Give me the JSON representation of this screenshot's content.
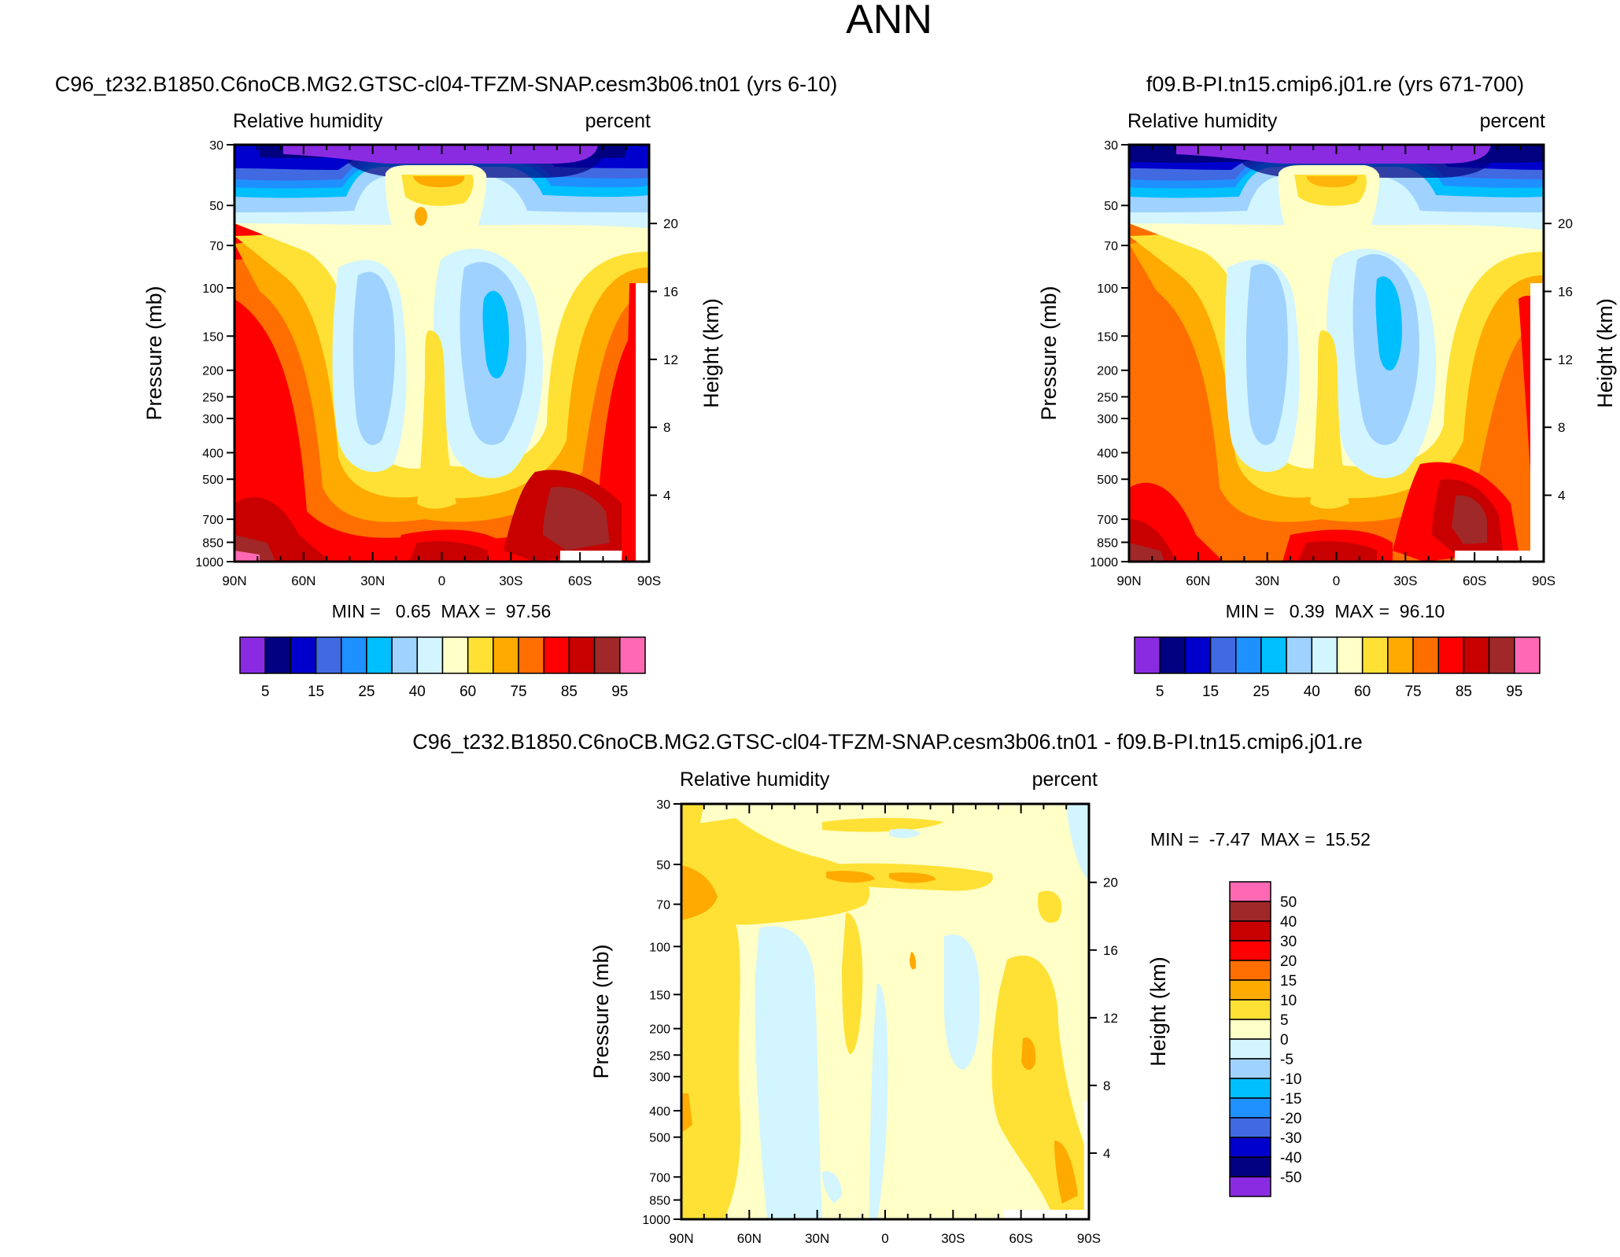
{
  "figure": {
    "title": "ANN"
  },
  "chart_data": [
    {
      "type": "contour",
      "id": "panel1",
      "title": "C96_t232.B1850.C6noCB.MG2.GTSC-cl04-TFZM-SNAP.cesm3b06.tn01 (yrs 6-10)",
      "variable": "Relative humidity",
      "units": "percent",
      "ylabel": "Pressure (mb)",
      "y2label": "Height (km)",
      "x_ticks": [
        "90N",
        "60N",
        "30N",
        "0",
        "30S",
        "60S",
        "90S"
      ],
      "x_values": [
        90,
        60,
        30,
        0,
        -30,
        -60,
        -90
      ],
      "p_ticks": [
        30,
        50,
        70,
        100,
        150,
        200,
        250,
        300,
        400,
        500,
        700,
        850,
        1000
      ],
      "height_ticks": [
        20,
        16,
        12,
        8,
        4
      ],
      "ylim": [
        1000,
        30
      ],
      "stats": "MIN =   0.65  MAX =  97.56",
      "min": 0.65,
      "max": 97.56,
      "colorbar": {
        "labels": [
          "5",
          "15",
          "25",
          "40",
          "60",
          "75",
          "85",
          "95"
        ],
        "levels": [
          5,
          10,
          15,
          20,
          25,
          30,
          40,
          50,
          60,
          70,
          75,
          80,
          85,
          90,
          95
        ],
        "colors": [
          "#8a2be2",
          "#000080",
          "#0000cd",
          "#4169e1",
          "#1e90ff",
          "#00bfff",
          "#a0d2ff",
          "#d2f5ff",
          "#ffffc8",
          "#ffe135",
          "#ffaa00",
          "#ff6e00",
          "#ff0000",
          "#c80000",
          "#a02828",
          "#ff69b4"
        ]
      }
    },
    {
      "type": "contour",
      "id": "panel2",
      "title": "f09.B-PI.tn15.cmip6.j01.re (yrs 671-700)",
      "variable": "Relative humidity",
      "units": "percent",
      "ylabel": "Pressure (mb)",
      "y2label": "Height (km)",
      "x_ticks": [
        "90N",
        "60N",
        "30N",
        "0",
        "30S",
        "60S",
        "90S"
      ],
      "x_values": [
        90,
        60,
        30,
        0,
        -30,
        -60,
        -90
      ],
      "p_ticks": [
        30,
        50,
        70,
        100,
        150,
        200,
        250,
        300,
        400,
        500,
        700,
        850,
        1000
      ],
      "height_ticks": [
        20,
        16,
        12,
        8,
        4
      ],
      "ylim": [
        1000,
        30
      ],
      "stats": "MIN =   0.39  MAX =  96.10",
      "min": 0.39,
      "max": 96.1,
      "colorbar": {
        "labels": [
          "5",
          "15",
          "25",
          "40",
          "60",
          "75",
          "85",
          "95"
        ],
        "levels": [
          5,
          10,
          15,
          20,
          25,
          30,
          40,
          50,
          60,
          70,
          75,
          80,
          85,
          90,
          95
        ],
        "colors": [
          "#8a2be2",
          "#000080",
          "#0000cd",
          "#4169e1",
          "#1e90ff",
          "#00bfff",
          "#a0d2ff",
          "#d2f5ff",
          "#ffffc8",
          "#ffe135",
          "#ffaa00",
          "#ff6e00",
          "#ff0000",
          "#c80000",
          "#a02828",
          "#ff69b4"
        ]
      }
    },
    {
      "type": "contour",
      "id": "panel3",
      "title": "C96_t232.B1850.C6noCB.MG2.GTSC-cl04-TFZM-SNAP.cesm3b06.tn01 - f09.B-PI.tn15.cmip6.j01.re",
      "variable": "Relative humidity",
      "units": "percent",
      "ylabel": "Pressure (mb)",
      "y2label": "Height (km)",
      "x_ticks": [
        "90N",
        "60N",
        "30N",
        "0",
        "30S",
        "60S",
        "90S"
      ],
      "x_values": [
        90,
        60,
        30,
        0,
        -30,
        -60,
        -90
      ],
      "p_ticks": [
        30,
        50,
        70,
        100,
        150,
        200,
        250,
        300,
        400,
        500,
        700,
        850,
        1000
      ],
      "height_ticks": [
        20,
        16,
        12,
        8,
        4
      ],
      "ylim": [
        1000,
        30
      ],
      "stats": "MIN =  -7.47  MAX =  15.52",
      "min": -7.47,
      "max": 15.52,
      "colorbar": {
        "labels": [
          "50",
          "40",
          "30",
          "20",
          "15",
          "10",
          "5",
          "0",
          "-5",
          "-10",
          "-15",
          "-20",
          "-30",
          "-40",
          "-50"
        ],
        "levels": [
          50,
          40,
          30,
          20,
          15,
          10,
          5,
          0,
          -5,
          -10,
          -15,
          -20,
          -30,
          -40,
          -50
        ],
        "colors": [
          "#ff69b4",
          "#a02828",
          "#c80000",
          "#ff0000",
          "#ff6e00",
          "#ffaa00",
          "#ffe135",
          "#ffffc8",
          "#d2f5ff",
          "#a0d2ff",
          "#00bfff",
          "#1e90ff",
          "#4169e1",
          "#0000cd",
          "#000080",
          "#8a2be2"
        ]
      }
    }
  ]
}
